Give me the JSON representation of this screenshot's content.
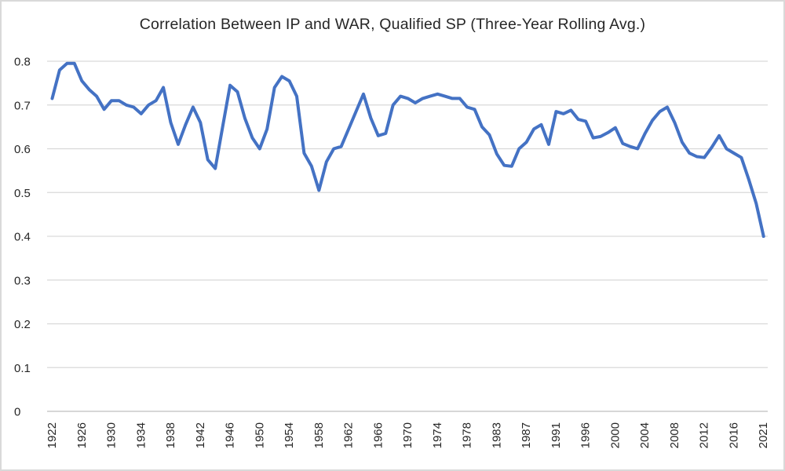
{
  "chart_data": {
    "type": "line",
    "title": "Correlation Between IP and WAR, Qualified SP (Three-Year Rolling Avg.)",
    "xlabel": "",
    "ylabel": "",
    "x": [
      1922,
      1923,
      1924,
      1925,
      1926,
      1927,
      1928,
      1929,
      1930,
      1931,
      1932,
      1933,
      1934,
      1935,
      1936,
      1937,
      1938,
      1939,
      1940,
      1941,
      1942,
      1943,
      1944,
      1945,
      1946,
      1947,
      1948,
      1949,
      1950,
      1951,
      1952,
      1953,
      1954,
      1955,
      1956,
      1957,
      1958,
      1959,
      1960,
      1961,
      1962,
      1963,
      1964,
      1965,
      1966,
      1967,
      1968,
      1969,
      1970,
      1971,
      1972,
      1973,
      1974,
      1975,
      1976,
      1977,
      1978,
      1979,
      1980,
      1982,
      1983,
      1984,
      1985,
      1986,
      1987,
      1988,
      1989,
      1990,
      1991,
      1992,
      1993,
      1995,
      1996,
      1997,
      1998,
      1999,
      2000,
      2001,
      2002,
      2003,
      2004,
      2005,
      2006,
      2007,
      2008,
      2009,
      2010,
      2011,
      2012,
      2013,
      2014,
      2015,
      2016,
      2017,
      2018,
      2019,
      2021
    ],
    "values": [
      0.715,
      0.78,
      0.795,
      0.795,
      0.755,
      0.735,
      0.72,
      0.69,
      0.71,
      0.71,
      0.7,
      0.695,
      0.68,
      0.7,
      0.71,
      0.74,
      0.66,
      0.61,
      0.655,
      0.695,
      0.66,
      0.575,
      0.555,
      0.65,
      0.745,
      0.73,
      0.67,
      0.625,
      0.6,
      0.645,
      0.74,
      0.765,
      0.755,
      0.72,
      0.59,
      0.56,
      0.505,
      0.57,
      0.6,
      0.605,
      0.645,
      0.685,
      0.725,
      0.67,
      0.63,
      0.635,
      0.7,
      0.72,
      0.715,
      0.705,
      0.715,
      0.72,
      0.725,
      0.72,
      0.715,
      0.715,
      0.695,
      0.69,
      0.65,
      0.632,
      0.588,
      0.562,
      0.56,
      0.6,
      0.615,
      0.645,
      0.655,
      0.61,
      0.685,
      0.68,
      0.688,
      0.667,
      0.663,
      0.625,
      0.628,
      0.637,
      0.648,
      0.612,
      0.605,
      0.6,
      0.635,
      0.665,
      0.685,
      0.695,
      0.66,
      0.615,
      0.59,
      0.582,
      0.58,
      0.603,
      0.63,
      0.6,
      0.59,
      0.58,
      0.53,
      0.475,
      0.4
    ],
    "x_tick_labels": [
      "1922",
      "1926",
      "1930",
      "1934",
      "1938",
      "1942",
      "1946",
      "1950",
      "1954",
      "1958",
      "1962",
      "1966",
      "1970",
      "1974",
      "1978",
      "1983",
      "1987",
      "1991",
      "1996",
      "2000",
      "2004",
      "2008",
      "2012",
      "2016",
      "2021"
    ],
    "x_tick_every_n_points": 4,
    "y_tick_labels": [
      "0",
      "0.1",
      "0.2",
      "0.3",
      "0.4",
      "0.5",
      "0.6",
      "0.7",
      "0.8"
    ],
    "y_ticks": [
      0,
      0.1,
      0.2,
      0.3,
      0.4,
      0.5,
      0.6,
      0.7,
      0.8
    ],
    "ylim": [
      0,
      0.8
    ],
    "grid": "horizontal",
    "legend": "none",
    "missing_years_on_axis": [
      1981,
      1994,
      2020
    ]
  },
  "colors": {
    "series_line": "#4472C4",
    "gridline": "#d9d9d9",
    "axis_line": "#bfbfbf",
    "text": "#262626",
    "chart_border": "#d9d9d9",
    "background": "#ffffff"
  }
}
